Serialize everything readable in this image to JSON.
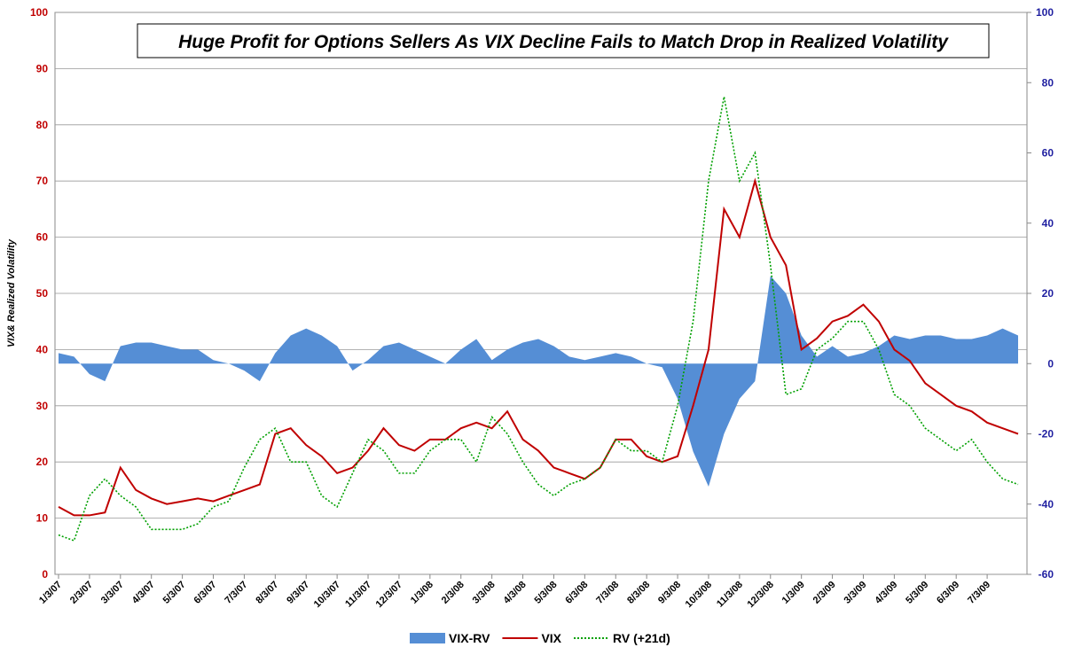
{
  "chart_data": {
    "type": "line",
    "title": "Huge Profit for Options Sellers As VIX Decline Fails to Match Drop in Realized Volatility",
    "y_label": "VIX& Realized Volatility",
    "categories": [
      "1/3/07",
      null,
      "2/3/07",
      null,
      "3/3/07",
      null,
      "4/3/07",
      null,
      "5/3/07",
      null,
      "6/3/07",
      null,
      "7/3/07",
      null,
      "8/3/07",
      null,
      "9/3/07",
      null,
      "10/3/07",
      null,
      "11/3/07",
      null,
      "12/3/07",
      null,
      "1/3/08",
      null,
      "2/3/08",
      null,
      "3/3/08",
      null,
      "4/3/08",
      null,
      "5/3/08",
      null,
      "6/3/08",
      null,
      "7/3/08",
      null,
      "8/3/08",
      null,
      "9/3/08",
      null,
      "10/3/08",
      null,
      "11/3/08",
      null,
      "12/3/08",
      null,
      "1/3/09",
      null,
      "2/3/09",
      null,
      "3/3/09",
      null,
      "4/3/09",
      null,
      "5/3/09",
      null,
      "6/3/09",
      null,
      "7/3/09",
      null,
      null
    ],
    "ylim": [
      0,
      100
    ],
    "yticks": [
      0,
      10,
      20,
      30,
      40,
      50,
      60,
      70,
      80,
      90,
      100
    ],
    "y2lim": [
      -60,
      100
    ],
    "y2ticks": [
      -60,
      -40,
      -20,
      0,
      20,
      40,
      60,
      80,
      100
    ],
    "grid": true,
    "legend": "bottom",
    "series": [
      {
        "name": "VIX-RV",
        "type": "area",
        "axis": "y2",
        "color": "#558ed5",
        "values": [
          3,
          2,
          -3,
          -5,
          5,
          6,
          6,
          5,
          4,
          4,
          1,
          0,
          -2,
          -5,
          3,
          8,
          10,
          8,
          5,
          -2,
          1,
          5,
          6,
          4,
          2,
          0,
          4,
          7,
          1,
          4,
          6,
          7,
          5,
          2,
          1,
          2,
          3,
          2,
          0,
          -1,
          -10,
          -25,
          -35,
          -20,
          -10,
          -5,
          25,
          20,
          8,
          2,
          5,
          2,
          3,
          5,
          8,
          7,
          8,
          8,
          7,
          7,
          8,
          10,
          8
        ]
      },
      {
        "name": "VIX",
        "type": "line",
        "color": "#c00000",
        "values": [
          12,
          10.5,
          10.5,
          11,
          19,
          15,
          13.5,
          12.5,
          13,
          13.5,
          13,
          14,
          15,
          16,
          25,
          26,
          23,
          21,
          18,
          19,
          22,
          26,
          23,
          22,
          24,
          24,
          26,
          27,
          26,
          29,
          24,
          22,
          19,
          18,
          17,
          19,
          24,
          24,
          21,
          20,
          21,
          30,
          40,
          65,
          60,
          70,
          60,
          55,
          40,
          42,
          45,
          46,
          48,
          45,
          40,
          38,
          34,
          32,
          30,
          29,
          27,
          26,
          25
        ]
      },
      {
        "name": "RV (+21d)",
        "type": "line",
        "dash": true,
        "color": "#00a000",
        "values": [
          7,
          6,
          14,
          17,
          14,
          12,
          8,
          8,
          8,
          9,
          12,
          13,
          19,
          24,
          26,
          20,
          20,
          14,
          12,
          18,
          24,
          22,
          18,
          18,
          22,
          24,
          24,
          20,
          28,
          25,
          20,
          16,
          14,
          16,
          17,
          19,
          24,
          22,
          22,
          20,
          30,
          45,
          70,
          85,
          70,
          75,
          55,
          32,
          33,
          40,
          42,
          45,
          45,
          40,
          32,
          30,
          26,
          24,
          22,
          24,
          20,
          17,
          16
        ]
      }
    ]
  }
}
